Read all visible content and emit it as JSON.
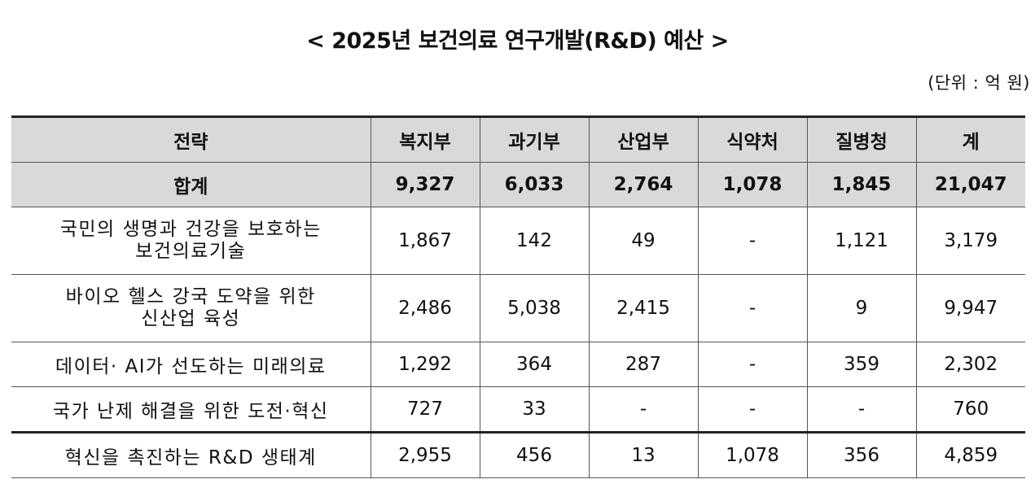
{
  "title": "< 2025년 보건의료 연구개발(R&D) 예산 >",
  "unit": "(단위 : 억 원)",
  "table": {
    "headers": [
      "전략",
      "복지부",
      "과기부",
      "산업부",
      "식약처",
      "질병청",
      "계"
    ],
    "total": [
      "합계",
      "9,327",
      "6,033",
      "2,764",
      "1,078",
      "1,845",
      "21,047"
    ],
    "rows": [
      {
        "strategy_line1": "국민의 생명과 건강을 보호하는",
        "strategy_line2": "보건의료기술",
        "values": [
          "1,867",
          "142",
          "49",
          "-",
          "1,121",
          "3,179"
        ]
      },
      {
        "strategy_line1": "바이오 헬스 강국 도약을 위한",
        "strategy_line2": "신산업 육성",
        "values": [
          "2,486",
          "5,038",
          "2,415",
          "-",
          "9",
          "9,947"
        ]
      },
      {
        "strategy_line1": "데이터· AI가 선도하는 미래의료",
        "strategy_line2": "",
        "values": [
          "1,292",
          "364",
          "287",
          "-",
          "359",
          "2,302"
        ]
      },
      {
        "strategy_line1": "국가 난제 해결을 위한 도전·혁신",
        "strategy_line2": "",
        "values": [
          "727",
          "33",
          "-",
          "-",
          "-",
          "760"
        ]
      },
      {
        "strategy_line1": "혁신을 촉진하는 R&D 생태계",
        "strategy_line2": "",
        "values": [
          "2,955",
          "456",
          "13",
          "1,078",
          "356",
          "4,859"
        ]
      }
    ]
  }
}
